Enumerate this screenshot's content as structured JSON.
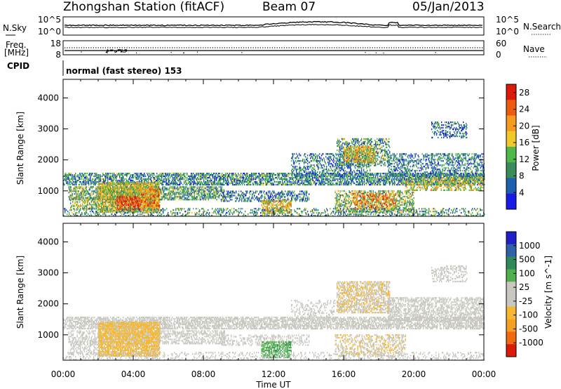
{
  "header": {
    "title": "Zhongshan Station (fitACF)",
    "beam": "Beam 07",
    "date": "05/Jan/2013"
  },
  "summary_panels": {
    "nsky": {
      "label": "N.Sky",
      "ticks": [
        "10^5",
        "10^0"
      ]
    },
    "nsearch": {
      "label": "N.Search",
      "ticks": [
        "10^5",
        "10^0"
      ]
    },
    "freq": {
      "label_line1": "Freq.",
      "label_line2": "[MHz]",
      "ticks": [
        "18",
        "8"
      ]
    },
    "nave": {
      "label": "Nave",
      "ticks": [
        "60",
        "0"
      ]
    },
    "cpid": {
      "label": "CPID",
      "value": "normal (fast stereo) 153"
    }
  },
  "colors": {
    "power_scale": [
      "#1a1ae6",
      "#1f5fb0",
      "#3c8c5a",
      "#4fb84a",
      "#f0c828",
      "#f59b20",
      "#ee5a10",
      "#dc1a0a"
    ],
    "velocity_scale": [
      "#dc1a0a",
      "#f06a10",
      "#f5a020",
      "#f5b830",
      "#c8c8c0",
      "#c8c8c0",
      "#50b050",
      "#2e8a5a",
      "#3060a8",
      "#2020c8"
    ]
  },
  "chart_data": [
    {
      "type": "heatmap",
      "panel": "power",
      "ylabel": "Slant Range [km]",
      "xlabel": "Time UT",
      "x_ticks": [
        "00:00",
        "04:00",
        "08:00",
        "12:00",
        "16:00",
        "20:00",
        "00:00"
      ],
      "x_range_hours": [
        0,
        24
      ],
      "y_ticks": [
        1000,
        2000,
        3000,
        4000
      ],
      "ylim": [
        180,
        4600
      ],
      "colorbar": {
        "label": "Power [dB]",
        "ticks": [
          4,
          8,
          12,
          16,
          20,
          24,
          28
        ],
        "range": [
          0,
          30
        ]
      },
      "regions": [
        {
          "t0": 0.0,
          "t1": 24.0,
          "r0": 1180,
          "r1": 1560,
          "value": 9,
          "density": 0.55
        },
        {
          "t0": 0.3,
          "t1": 9.2,
          "r0": 700,
          "r1": 1150,
          "value": 11,
          "density": 0.5
        },
        {
          "t0": 2.0,
          "t1": 5.5,
          "r0": 300,
          "r1": 1250,
          "value": 16,
          "density": 0.7
        },
        {
          "t0": 3.0,
          "t1": 4.4,
          "r0": 380,
          "r1": 800,
          "value": 26,
          "density": 0.6
        },
        {
          "t0": 4.3,
          "t1": 5.5,
          "r0": 450,
          "r1": 1050,
          "value": 22,
          "density": 0.5
        },
        {
          "t0": 0.4,
          "t1": 2.0,
          "r0": 400,
          "r1": 800,
          "value": 14,
          "density": 0.4
        },
        {
          "t0": 9.0,
          "t1": 14.0,
          "r0": 650,
          "r1": 1000,
          "value": 7,
          "density": 0.35
        },
        {
          "t0": 11.3,
          "t1": 13.0,
          "r0": 250,
          "r1": 700,
          "value": 18,
          "density": 0.55
        },
        {
          "t0": 13.0,
          "t1": 17.5,
          "r0": 1450,
          "r1": 2200,
          "value": 8,
          "density": 0.3
        },
        {
          "t0": 15.6,
          "t1": 18.6,
          "r0": 1800,
          "r1": 2700,
          "value": 10,
          "density": 0.4
        },
        {
          "t0": 16.0,
          "t1": 17.8,
          "r0": 1900,
          "r1": 2400,
          "value": 18,
          "density": 0.5
        },
        {
          "t0": 15.5,
          "t1": 20.0,
          "r0": 300,
          "r1": 1000,
          "value": 13,
          "density": 0.4
        },
        {
          "t0": 16.5,
          "t1": 19.0,
          "r0": 400,
          "r1": 900,
          "value": 22,
          "density": 0.35
        },
        {
          "t0": 18.5,
          "t1": 24.0,
          "r0": 1450,
          "r1": 2200,
          "value": 8,
          "density": 0.35
        },
        {
          "t0": 19.5,
          "t1": 24.0,
          "r0": 1000,
          "r1": 1450,
          "value": 16,
          "density": 0.35
        },
        {
          "t0": 21.0,
          "t1": 23.0,
          "r0": 2700,
          "r1": 3200,
          "value": 6,
          "density": 0.3
        },
        {
          "t0": 0.0,
          "t1": 24.0,
          "r0": 180,
          "r1": 420,
          "value": 10,
          "density": 0.25
        }
      ]
    },
    {
      "type": "heatmap",
      "panel": "velocity",
      "ylabel": "Slant Range [km]",
      "xlabel": "Time UT",
      "x_ticks": [
        "00:00",
        "04:00",
        "08:00",
        "12:00",
        "16:00",
        "20:00",
        "00:00"
      ],
      "x_range_hours": [
        0,
        24
      ],
      "y_ticks": [
        1000,
        2000,
        3000,
        4000
      ],
      "ylim": [
        180,
        4600
      ],
      "colorbar": {
        "label": "Velocity [m s^-1]",
        "ticks": [
          1000,
          500,
          100,
          25,
          -25,
          -100,
          -500,
          -1000
        ],
        "range": [
          -1200,
          1200
        ]
      },
      "regions": [
        {
          "t0": 0.0,
          "t1": 24.0,
          "r0": 1180,
          "r1": 1560,
          "value": 0,
          "density": 0.55
        },
        {
          "t0": 0.3,
          "t1": 9.2,
          "r0": 700,
          "r1": 1150,
          "value": 0,
          "density": 0.4
        },
        {
          "t0": 2.0,
          "t1": 5.5,
          "r0": 300,
          "r1": 1400,
          "value": -300,
          "density": 0.75
        },
        {
          "t0": 0.4,
          "t1": 2.0,
          "r0": 350,
          "r1": 800,
          "value": 80,
          "density": 0.35
        },
        {
          "t0": 9.0,
          "t1": 14.0,
          "r0": 650,
          "r1": 1000,
          "value": 0,
          "density": 0.3
        },
        {
          "t0": 11.3,
          "t1": 13.0,
          "r0": 250,
          "r1": 750,
          "value": 400,
          "density": 0.5
        },
        {
          "t0": 13.0,
          "t1": 15.5,
          "r0": 1500,
          "r1": 2100,
          "value": 80,
          "density": 0.2
        },
        {
          "t0": 15.6,
          "t1": 18.6,
          "r0": 1700,
          "r1": 2700,
          "value": -200,
          "density": 0.5
        },
        {
          "t0": 15.5,
          "t1": 19.5,
          "r0": 300,
          "r1": 1000,
          "value": -200,
          "density": 0.35
        },
        {
          "t0": 18.5,
          "t1": 24.0,
          "r0": 1450,
          "r1": 2200,
          "value": 0,
          "density": 0.45
        },
        {
          "t0": 21.0,
          "t1": 23.0,
          "r0": 2700,
          "r1": 3200,
          "value": 0,
          "density": 0.3
        },
        {
          "t0": 0.0,
          "t1": 24.0,
          "r0": 180,
          "r1": 420,
          "value": 40,
          "density": 0.2
        }
      ]
    }
  ]
}
